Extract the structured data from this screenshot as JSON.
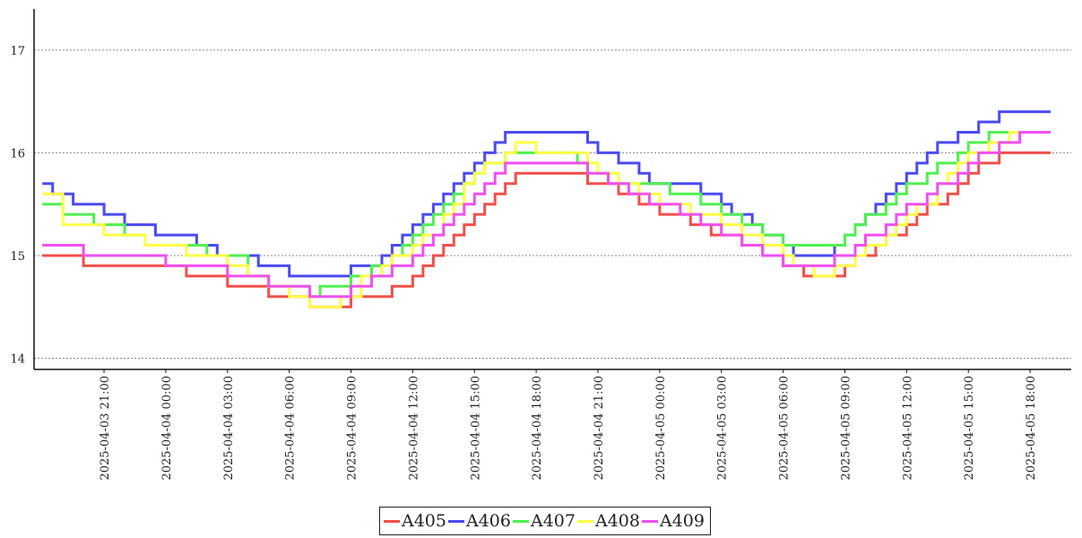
{
  "chart_data": {
    "type": "line",
    "title": "",
    "xlabel": "",
    "ylabel": "",
    "ylim": [
      13.9,
      17.4
    ],
    "xlim": [
      "2025-04-03 17:36",
      "2025-04-05 20:00"
    ],
    "grid": "horizontal dotted",
    "legend_position": "bottom-center",
    "yticks": [
      14,
      15,
      16,
      17
    ],
    "xticks": [
      "2025-04-03 21:00",
      "2025-04-04 00:00",
      "2025-04-04 03:00",
      "2025-04-04 06:00",
      "2025-04-04 09:00",
      "2025-04-04 12:00",
      "2025-04-04 15:00",
      "2025-04-04 18:00",
      "2025-04-04 21:00",
      "2025-04-05 00:00",
      "2025-04-05 03:00",
      "2025-04-05 06:00",
      "2025-04-05 09:00",
      "2025-04-05 12:00",
      "2025-04-05 15:00",
      "2025-04-05 18:00"
    ],
    "series": [
      {
        "name": "A405",
        "color": "#f0504a",
        "points": [
          [
            "2025-04-03 18:00",
            15.0
          ],
          [
            "2025-04-03 20:00",
            14.9
          ],
          [
            "2025-04-04 01:00",
            14.8
          ],
          [
            "2025-04-04 03:00",
            14.7
          ],
          [
            "2025-04-04 05:00",
            14.6
          ],
          [
            "2025-04-04 07:00",
            14.5
          ],
          [
            "2025-04-04 09:00",
            14.6
          ],
          [
            "2025-04-04 11:00",
            14.7
          ],
          [
            "2025-04-04 12:00",
            14.8
          ],
          [
            "2025-04-04 12:30",
            14.9
          ],
          [
            "2025-04-04 13:00",
            15.0
          ],
          [
            "2025-04-04 13:30",
            15.1
          ],
          [
            "2025-04-04 14:00",
            15.2
          ],
          [
            "2025-04-04 14:30",
            15.3
          ],
          [
            "2025-04-04 15:00",
            15.4
          ],
          [
            "2025-04-04 15:30",
            15.5
          ],
          [
            "2025-04-04 16:00",
            15.6
          ],
          [
            "2025-04-04 16:30",
            15.7
          ],
          [
            "2025-04-04 17:00",
            15.8
          ],
          [
            "2025-04-04 19:30",
            15.8
          ],
          [
            "2025-04-04 20:30",
            15.7
          ],
          [
            "2025-04-04 22:00",
            15.6
          ],
          [
            "2025-04-04 23:00",
            15.5
          ],
          [
            "2025-04-05 00:00",
            15.4
          ],
          [
            "2025-04-05 01:30",
            15.3
          ],
          [
            "2025-04-05 02:30",
            15.2
          ],
          [
            "2025-04-05 04:00",
            15.1
          ],
          [
            "2025-04-05 05:00",
            15.0
          ],
          [
            "2025-04-05 06:00",
            14.9
          ],
          [
            "2025-04-05 07:00",
            14.8
          ],
          [
            "2025-04-05 09:00",
            14.9
          ],
          [
            "2025-04-05 09:30",
            15.0
          ],
          [
            "2025-04-05 10:30",
            15.1
          ],
          [
            "2025-04-05 11:00",
            15.2
          ],
          [
            "2025-04-05 12:00",
            15.3
          ],
          [
            "2025-04-05 12:30",
            15.4
          ],
          [
            "2025-04-05 13:00",
            15.5
          ],
          [
            "2025-04-05 14:00",
            15.6
          ],
          [
            "2025-04-05 14:30",
            15.7
          ],
          [
            "2025-04-05 15:00",
            15.8
          ],
          [
            "2025-04-05 15:30",
            15.9
          ],
          [
            "2025-04-05 16:30",
            16.0
          ],
          [
            "2025-04-05 19:00",
            16.0
          ]
        ]
      },
      {
        "name": "A406",
        "color": "#4b4bf0",
        "points": [
          [
            "2025-04-03 18:00",
            15.7
          ],
          [
            "2025-04-03 18:30",
            15.6
          ],
          [
            "2025-04-03 19:30",
            15.5
          ],
          [
            "2025-04-03 21:00",
            15.4
          ],
          [
            "2025-04-03 22:00",
            15.3
          ],
          [
            "2025-04-03 23:30",
            15.2
          ],
          [
            "2025-04-04 01:30",
            15.1
          ],
          [
            "2025-04-04 02:30",
            15.0
          ],
          [
            "2025-04-04 04:30",
            14.9
          ],
          [
            "2025-04-04 06:00",
            14.8
          ],
          [
            "2025-04-04 09:00",
            14.9
          ],
          [
            "2025-04-04 10:30",
            15.0
          ],
          [
            "2025-04-04 11:00",
            15.1
          ],
          [
            "2025-04-04 11:30",
            15.2
          ],
          [
            "2025-04-04 12:00",
            15.3
          ],
          [
            "2025-04-04 12:30",
            15.4
          ],
          [
            "2025-04-04 13:00",
            15.5
          ],
          [
            "2025-04-04 13:30",
            15.6
          ],
          [
            "2025-04-04 14:00",
            15.7
          ],
          [
            "2025-04-04 14:30",
            15.8
          ],
          [
            "2025-04-04 15:00",
            15.9
          ],
          [
            "2025-04-04 15:30",
            16.0
          ],
          [
            "2025-04-04 16:00",
            16.1
          ],
          [
            "2025-04-04 16:30",
            16.2
          ],
          [
            "2025-04-04 20:00",
            16.2
          ],
          [
            "2025-04-04 20:30",
            16.1
          ],
          [
            "2025-04-04 21:00",
            16.0
          ],
          [
            "2025-04-04 22:00",
            15.9
          ],
          [
            "2025-04-04 23:00",
            15.8
          ],
          [
            "2025-04-04 23:30",
            15.7
          ],
          [
            "2025-04-05 02:00",
            15.6
          ],
          [
            "2025-04-05 03:00",
            15.5
          ],
          [
            "2025-04-05 03:30",
            15.4
          ],
          [
            "2025-04-05 04:30",
            15.3
          ],
          [
            "2025-04-05 05:00",
            15.2
          ],
          [
            "2025-04-05 06:00",
            15.1
          ],
          [
            "2025-04-05 06:30",
            15.0
          ],
          [
            "2025-04-05 08:30",
            15.1
          ],
          [
            "2025-04-05 09:00",
            15.2
          ],
          [
            "2025-04-05 09:30",
            15.3
          ],
          [
            "2025-04-05 10:00",
            15.4
          ],
          [
            "2025-04-05 10:30",
            15.5
          ],
          [
            "2025-04-05 11:00",
            15.6
          ],
          [
            "2025-04-05 11:30",
            15.7
          ],
          [
            "2025-04-05 12:00",
            15.8
          ],
          [
            "2025-04-05 12:30",
            15.9
          ],
          [
            "2025-04-05 13:00",
            16.0
          ],
          [
            "2025-04-05 13:30",
            16.1
          ],
          [
            "2025-04-05 14:30",
            16.2
          ],
          [
            "2025-04-05 15:30",
            16.3
          ],
          [
            "2025-04-05 16:30",
            16.4
          ],
          [
            "2025-04-05 19:00",
            16.4
          ]
        ]
      },
      {
        "name": "A407",
        "color": "#50f050",
        "points": [
          [
            "2025-04-03 18:00",
            15.5
          ],
          [
            "2025-04-03 19:00",
            15.4
          ],
          [
            "2025-04-03 20:30",
            15.3
          ],
          [
            "2025-04-03 22:00",
            15.2
          ],
          [
            "2025-04-03 23:00",
            15.1
          ],
          [
            "2025-04-04 02:00",
            15.0
          ],
          [
            "2025-04-04 04:00",
            14.8
          ],
          [
            "2025-04-04 05:00",
            14.7
          ],
          [
            "2025-04-04 07:00",
            14.6
          ],
          [
            "2025-04-04 07:30",
            14.7
          ],
          [
            "2025-04-04 09:00",
            14.8
          ],
          [
            "2025-04-04 10:00",
            14.9
          ],
          [
            "2025-04-04 11:00",
            15.0
          ],
          [
            "2025-04-04 11:30",
            15.1
          ],
          [
            "2025-04-04 12:00",
            15.2
          ],
          [
            "2025-04-04 12:30",
            15.3
          ],
          [
            "2025-04-04 13:00",
            15.4
          ],
          [
            "2025-04-04 13:30",
            15.5
          ],
          [
            "2025-04-04 14:00",
            15.6
          ],
          [
            "2025-04-04 14:30",
            15.7
          ],
          [
            "2025-04-04 15:00",
            15.8
          ],
          [
            "2025-04-04 15:30",
            15.9
          ],
          [
            "2025-04-04 16:30",
            16.0
          ],
          [
            "2025-04-04 20:00",
            15.9
          ],
          [
            "2025-04-04 21:00",
            15.8
          ],
          [
            "2025-04-04 22:00",
            15.7
          ],
          [
            "2025-04-05 00:30",
            15.6
          ],
          [
            "2025-04-05 02:00",
            15.5
          ],
          [
            "2025-04-05 03:00",
            15.4
          ],
          [
            "2025-04-05 04:00",
            15.3
          ],
          [
            "2025-04-05 05:00",
            15.2
          ],
          [
            "2025-04-05 06:00",
            15.1
          ],
          [
            "2025-04-05 09:00",
            15.2
          ],
          [
            "2025-04-05 09:30",
            15.3
          ],
          [
            "2025-04-05 10:00",
            15.4
          ],
          [
            "2025-04-05 11:00",
            15.5
          ],
          [
            "2025-04-05 11:30",
            15.6
          ],
          [
            "2025-04-05 12:00",
            15.7
          ],
          [
            "2025-04-05 13:00",
            15.8
          ],
          [
            "2025-04-05 13:30",
            15.9
          ],
          [
            "2025-04-05 14:30",
            16.0
          ],
          [
            "2025-04-05 15:00",
            16.1
          ],
          [
            "2025-04-05 16:00",
            16.2
          ],
          [
            "2025-04-05 19:00",
            16.2
          ]
        ]
      },
      {
        "name": "A408",
        "color": "#ffff46",
        "points": [
          [
            "2025-04-03 18:00",
            15.6
          ],
          [
            "2025-04-03 19:00",
            15.3
          ],
          [
            "2025-04-03 21:00",
            15.2
          ],
          [
            "2025-04-03 23:00",
            15.1
          ],
          [
            "2025-04-04 01:00",
            15.0
          ],
          [
            "2025-04-04 03:00",
            14.9
          ],
          [
            "2025-04-04 04:00",
            14.8
          ],
          [
            "2025-04-04 05:00",
            14.7
          ],
          [
            "2025-04-04 06:00",
            14.6
          ],
          [
            "2025-04-04 07:00",
            14.5
          ],
          [
            "2025-04-04 08:30",
            14.6
          ],
          [
            "2025-04-04 09:30",
            14.8
          ],
          [
            "2025-04-04 10:30",
            14.9
          ],
          [
            "2025-04-04 11:00",
            15.0
          ],
          [
            "2025-04-04 12:00",
            15.1
          ],
          [
            "2025-04-04 12:30",
            15.2
          ],
          [
            "2025-04-04 13:30",
            15.4
          ],
          [
            "2025-04-04 14:00",
            15.5
          ],
          [
            "2025-04-04 14:30",
            15.7
          ],
          [
            "2025-04-04 15:00",
            15.8
          ],
          [
            "2025-04-04 15:30",
            15.9
          ],
          [
            "2025-04-04 16:30",
            16.0
          ],
          [
            "2025-04-04 17:00",
            16.1
          ],
          [
            "2025-04-04 18:00",
            16.0
          ],
          [
            "2025-04-04 20:30",
            15.9
          ],
          [
            "2025-04-04 21:00",
            15.8
          ],
          [
            "2025-04-04 22:00",
            15.7
          ],
          [
            "2025-04-04 23:00",
            15.6
          ],
          [
            "2025-04-05 00:00",
            15.5
          ],
          [
            "2025-04-05 01:30",
            15.4
          ],
          [
            "2025-04-05 03:00",
            15.3
          ],
          [
            "2025-04-05 04:00",
            15.2
          ],
          [
            "2025-04-05 05:00",
            15.1
          ],
          [
            "2025-04-05 06:00",
            15.0
          ],
          [
            "2025-04-05 06:30",
            14.9
          ],
          [
            "2025-04-05 07:30",
            14.8
          ],
          [
            "2025-04-05 08:30",
            14.9
          ],
          [
            "2025-04-05 09:30",
            15.0
          ],
          [
            "2025-04-05 10:00",
            15.1
          ],
          [
            "2025-04-05 11:00",
            15.2
          ],
          [
            "2025-04-05 11:30",
            15.3
          ],
          [
            "2025-04-05 12:00",
            15.4
          ],
          [
            "2025-04-05 12:30",
            15.5
          ],
          [
            "2025-04-05 13:30",
            15.7
          ],
          [
            "2025-04-05 14:00",
            15.8
          ],
          [
            "2025-04-05 14:30",
            15.9
          ],
          [
            "2025-04-05 15:00",
            16.0
          ],
          [
            "2025-04-05 16:00",
            16.1
          ],
          [
            "2025-04-05 17:00",
            16.2
          ],
          [
            "2025-04-05 19:00",
            16.2
          ]
        ]
      },
      {
        "name": "A409",
        "color": "#f050f0",
        "points": [
          [
            "2025-04-03 18:00",
            15.1
          ],
          [
            "2025-04-03 20:00",
            15.0
          ],
          [
            "2025-04-04 00:00",
            14.9
          ],
          [
            "2025-04-04 03:00",
            14.8
          ],
          [
            "2025-04-04 05:00",
            14.7
          ],
          [
            "2025-04-04 07:00",
            14.6
          ],
          [
            "2025-04-04 09:00",
            14.7
          ],
          [
            "2025-04-04 10:00",
            14.8
          ],
          [
            "2025-04-04 11:00",
            14.9
          ],
          [
            "2025-04-04 12:00",
            15.0
          ],
          [
            "2025-04-04 12:30",
            15.1
          ],
          [
            "2025-04-04 13:00",
            15.2
          ],
          [
            "2025-04-04 13:30",
            15.3
          ],
          [
            "2025-04-04 14:00",
            15.4
          ],
          [
            "2025-04-04 14:30",
            15.5
          ],
          [
            "2025-04-04 15:00",
            15.6
          ],
          [
            "2025-04-04 15:30",
            15.7
          ],
          [
            "2025-04-04 16:00",
            15.8
          ],
          [
            "2025-04-04 16:30",
            15.9
          ],
          [
            "2025-04-04 19:30",
            15.9
          ],
          [
            "2025-04-04 20:30",
            15.8
          ],
          [
            "2025-04-04 21:30",
            15.7
          ],
          [
            "2025-04-04 22:30",
            15.6
          ],
          [
            "2025-04-04 23:30",
            15.5
          ],
          [
            "2025-04-05 01:00",
            15.4
          ],
          [
            "2025-04-05 02:00",
            15.3
          ],
          [
            "2025-04-05 03:00",
            15.2
          ],
          [
            "2025-04-05 04:00",
            15.1
          ],
          [
            "2025-04-05 05:00",
            15.0
          ],
          [
            "2025-04-05 06:00",
            14.9
          ],
          [
            "2025-04-05 08:30",
            15.0
          ],
          [
            "2025-04-05 09:30",
            15.1
          ],
          [
            "2025-04-05 10:00",
            15.2
          ],
          [
            "2025-04-05 11:00",
            15.3
          ],
          [
            "2025-04-05 11:30",
            15.4
          ],
          [
            "2025-04-05 12:00",
            15.5
          ],
          [
            "2025-04-05 13:00",
            15.6
          ],
          [
            "2025-04-05 13:30",
            15.7
          ],
          [
            "2025-04-05 14:30",
            15.8
          ],
          [
            "2025-04-05 15:00",
            15.9
          ],
          [
            "2025-04-05 15:30",
            16.0
          ],
          [
            "2025-04-05 16:30",
            16.1
          ],
          [
            "2025-04-05 17:30",
            16.2
          ],
          [
            "2025-04-05 19:00",
            16.2
          ]
        ]
      }
    ]
  }
}
